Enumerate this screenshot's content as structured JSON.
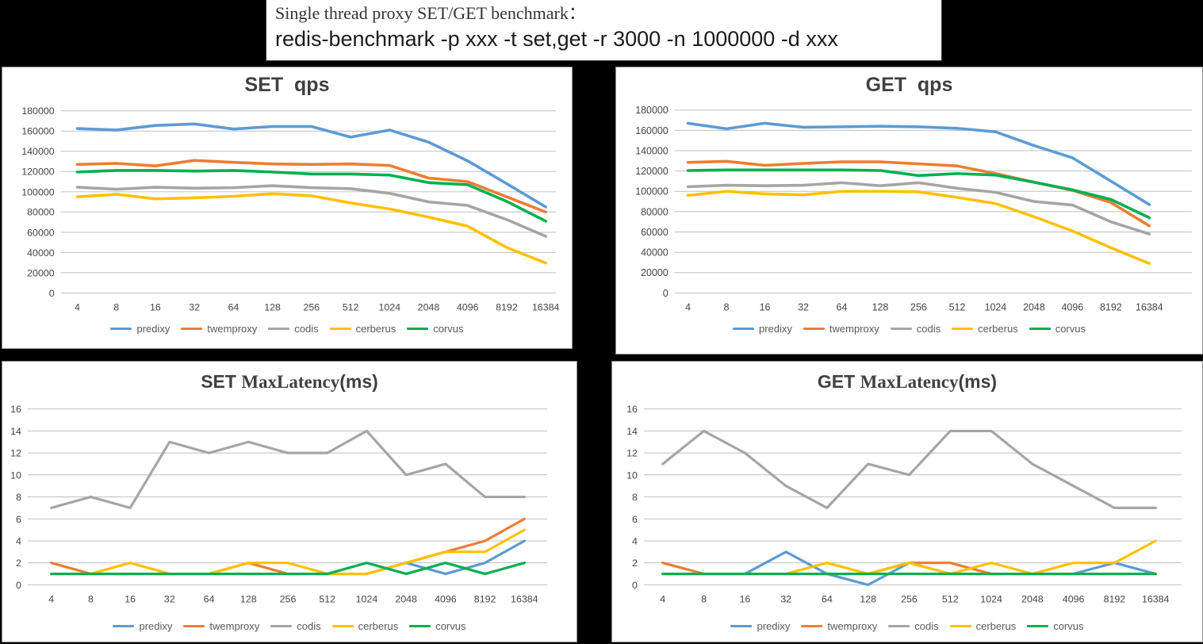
{
  "header": {
    "line1": "Single thread proxy SET/GET benchmark：",
    "line2": "redis-benchmark -p xxx -t set,get -r 3000 -n 1000000 -d xxx"
  },
  "palette": {
    "predixy": "#5B9BD5",
    "twemproxy": "#ED7D31",
    "codis": "#A5A5A5",
    "cerberus": "#FFC000",
    "corvus": "#00B050"
  },
  "grid_color": "#BFBFBF",
  "axis_text_color": "#444444",
  "title_text_color": "#404040",
  "categories": [
    "4",
    "8",
    "16",
    "32",
    "64",
    "128",
    "256",
    "512",
    "1024",
    "2048",
    "4096",
    "8192",
    "16384"
  ],
  "legend": [
    "predixy",
    "twemproxy",
    "codis",
    "cerberus",
    "corvus"
  ],
  "chart_data": [
    {
      "id": "set-qps",
      "type": "line",
      "title_parts": [
        {
          "text": "SET  qps",
          "style": "bold"
        }
      ],
      "ylim": [
        0,
        180000
      ],
      "ytick_step": 20000,
      "grid": true,
      "legend_position": "bottom",
      "series": [
        {
          "name": "predixy",
          "values": [
            162500,
            161000,
            165500,
            167000,
            162000,
            164500,
            164500,
            154000,
            161000,
            149000,
            130500,
            108000,
            85000
          ]
        },
        {
          "name": "twemproxy",
          "values": [
            127000,
            128000,
            125500,
            131000,
            129000,
            127500,
            127000,
            127500,
            126000,
            113500,
            110000,
            95000,
            80000
          ]
        },
        {
          "name": "codis",
          "values": [
            104500,
            102500,
            104500,
            103500,
            104000,
            106000,
            104000,
            103000,
            98500,
            90000,
            86500,
            72500,
            56000
          ]
        },
        {
          "name": "cerberus",
          "values": [
            95000,
            97500,
            93000,
            94000,
            95500,
            98000,
            96000,
            89000,
            83000,
            75000,
            66000,
            45000,
            29500
          ]
        },
        {
          "name": "corvus",
          "values": [
            119500,
            121000,
            121000,
            120500,
            121000,
            119500,
            117500,
            117500,
            116500,
            109000,
            107000,
            90500,
            71000
          ]
        }
      ]
    },
    {
      "id": "get-qps",
      "type": "line",
      "title_parts": [
        {
          "text": "GET  qps",
          "style": "bold"
        }
      ],
      "ylim": [
        0,
        180000
      ],
      "ytick_step": 20000,
      "grid": true,
      "legend_position": "bottom",
      "series": [
        {
          "name": "predixy",
          "values": [
            167000,
            161500,
            167000,
            163000,
            163500,
            164000,
            163500,
            162000,
            158500,
            145000,
            133000,
            110000,
            87000
          ]
        },
        {
          "name": "twemproxy",
          "values": [
            128500,
            129500,
            125500,
            127500,
            129000,
            129000,
            127000,
            125000,
            117500,
            109000,
            101000,
            89000,
            66000
          ]
        },
        {
          "name": "codis",
          "values": [
            104500,
            106000,
            105500,
            106000,
            108500,
            105500,
            108500,
            103000,
            99000,
            90000,
            86500,
            70000,
            58000
          ]
        },
        {
          "name": "cerberus",
          "values": [
            96000,
            100000,
            97500,
            96500,
            100000,
            100000,
            99500,
            94000,
            88000,
            75000,
            61000,
            44500,
            29000
          ]
        },
        {
          "name": "corvus",
          "values": [
            120500,
            121000,
            121000,
            121000,
            121000,
            120500,
            115500,
            117500,
            116000,
            109000,
            101500,
            92000,
            74000
          ]
        }
      ]
    },
    {
      "id": "set-maxlatency",
      "type": "line",
      "title_parts": [
        {
          "text": "SET ",
          "style": "bold"
        },
        {
          "text": "MaxLatency",
          "style": "serif"
        },
        {
          "text": "(ms)",
          "style": "bold"
        }
      ],
      "ylim": [
        0,
        16
      ],
      "ytick_step": 2,
      "grid": true,
      "legend_position": "bottom",
      "series": [
        {
          "name": "predixy",
          "values": [
            1,
            1,
            1,
            1,
            1,
            1,
            1,
            1,
            1,
            2,
            1,
            2,
            4
          ]
        },
        {
          "name": "twemproxy",
          "values": [
            2,
            1,
            1,
            1,
            1,
            2,
            1,
            1,
            1,
            2,
            3,
            4,
            6
          ]
        },
        {
          "name": "codis",
          "values": [
            7,
            8,
            7,
            13,
            12,
            13,
            12,
            12,
            14,
            10,
            11,
            8,
            8
          ]
        },
        {
          "name": "cerberus",
          "values": [
            1,
            1,
            2,
            1,
            1,
            2,
            2,
            1,
            1,
            2,
            3,
            3,
            5
          ]
        },
        {
          "name": "corvus",
          "values": [
            1,
            1,
            1,
            1,
            1,
            1,
            1,
            1,
            2,
            1,
            2,
            1,
            2
          ]
        }
      ]
    },
    {
      "id": "get-maxlatency",
      "type": "line",
      "title_parts": [
        {
          "text": "GET ",
          "style": "bold"
        },
        {
          "text": "MaxLatency",
          "style": "serif"
        },
        {
          "text": "(ms)",
          "style": "bold"
        }
      ],
      "ylim": [
        0,
        16
      ],
      "ytick_step": 2,
      "grid": true,
      "legend_position": "bottom",
      "series": [
        {
          "name": "predixy",
          "values": [
            1,
            1,
            1,
            3,
            1,
            0,
            2,
            1,
            1,
            1,
            1,
            2,
            1
          ]
        },
        {
          "name": "twemproxy",
          "values": [
            2,
            1,
            1,
            1,
            1,
            1,
            2,
            2,
            1,
            1,
            1,
            1,
            1
          ]
        },
        {
          "name": "codis",
          "values": [
            11,
            14,
            12,
            9,
            7,
            11,
            10,
            14,
            14,
            11,
            9,
            7,
            7
          ]
        },
        {
          "name": "cerberus",
          "values": [
            1,
            1,
            1,
            1,
            2,
            1,
            2,
            1,
            2,
            1,
            2,
            2,
            4
          ]
        },
        {
          "name": "corvus",
          "values": [
            1,
            1,
            1,
            1,
            1,
            1,
            1,
            1,
            1,
            1,
            1,
            1,
            1
          ]
        }
      ]
    }
  ]
}
